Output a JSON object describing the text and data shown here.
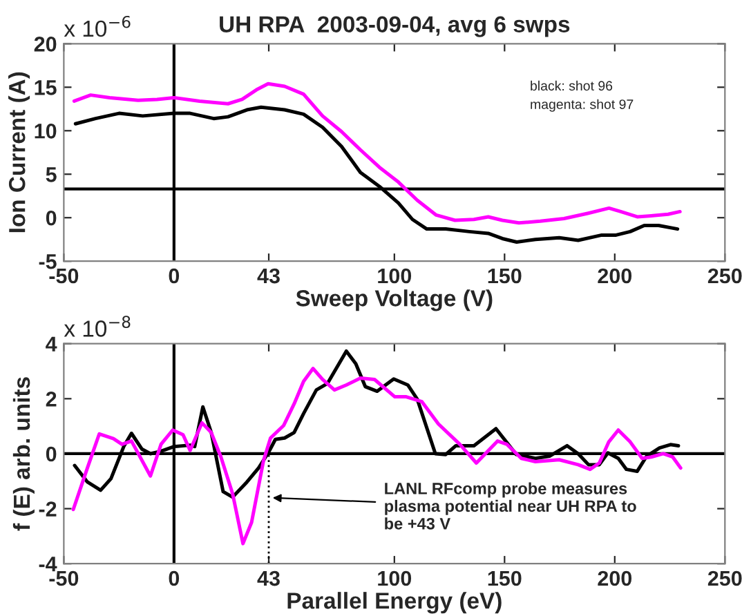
{
  "chart_data": [
    {
      "type": "line",
      "title": "UH RPA  2003-09-04, avg 6 swps",
      "xlabel": "Sweep Voltage (V)",
      "ylabel": "Ion Current (A)",
      "xlim": [
        -50,
        250
      ],
      "xticks": [
        -50,
        0,
        43,
        100,
        150,
        200,
        250
      ],
      "ylim": [
        -5,
        20
      ],
      "yticks": [
        -5,
        0,
        5,
        10,
        15,
        20
      ],
      "grid": false,
      "annotations": [
        "x 10$^{−6}$",
        "black: shot 96",
        "magenta: shot 97"
      ],
      "ref_lines": [
        {
          "axis": "y",
          "value": 3.3,
          "color": "#000000",
          "line_style": "solid"
        },
        {
          "axis": "x",
          "value": 0,
          "color": "#000000",
          "line_style": "solid"
        }
      ],
      "series": [
        {
          "color": "#ff00ff",
          "x": [
            -45.3,
            -37.8,
            -29.2,
            -16.3,
            -7.7,
            0,
            11.6,
            24.5,
            30.9,
            37.4,
            42.7,
            50.2,
            58.8,
            67.4,
            76,
            84.6,
            93.2,
            101.8,
            110.4,
            119,
            127.5,
            136.1,
            142.6,
            149,
            156.5,
            166.2,
            177,
            187.7,
            197.4,
            202.7,
            210.2,
            215.6,
            224.2,
            229.6
          ],
          "values": [
            13.4,
            14.1,
            13.8,
            13.5,
            13.6,
            13.8,
            13.4,
            13.1,
            13.6,
            14.7,
            15.4,
            15.1,
            14.2,
            11.7,
            9.9,
            7.8,
            5.8,
            4.1,
            2.0,
            0.3,
            -0.3,
            -0.2,
            0.1,
            -0.3,
            -0.6,
            -0.4,
            -0.1,
            0.5,
            1.1,
            0.7,
            0.1,
            0.2,
            0.4,
            0.7
          ]
        },
        {
          "color": "#000000",
          "x": [
            -44.7,
            -35.6,
            -24.9,
            -14.2,
            0,
            7.3,
            18,
            24.5,
            33.1,
            39.5,
            50.2,
            58.8,
            67.4,
            76,
            84.6,
            93.2,
            101.8,
            108.2,
            114.7,
            123.3,
            134,
            142.6,
            149,
            155.5,
            164,
            174.8,
            183.4,
            194.1,
            200.6,
            207,
            213.4,
            219.9,
            228.5
          ],
          "values": [
            10.8,
            11.4,
            12.0,
            11.7,
            12.0,
            12.0,
            11.4,
            11.6,
            12.4,
            12.7,
            12.4,
            11.9,
            10.4,
            8.2,
            5.2,
            3.6,
            1.7,
            -0.2,
            -1.3,
            -1.3,
            -1.6,
            -1.8,
            -2.4,
            -2.8,
            -2.5,
            -2.3,
            -2.6,
            -2.0,
            -2.0,
            -1.6,
            -0.9,
            -0.9,
            -1.3
          ]
        }
      ]
    },
    {
      "type": "line",
      "xlabel": "Parallel Energy (eV)",
      "ylabel": "f (E) arb. units",
      "xlim": [
        -50,
        250
      ],
      "xticks": [
        -50,
        0,
        43,
        100,
        150,
        200,
        250
      ],
      "ylim": [
        -4,
        4
      ],
      "yticks": [
        -4,
        -2,
        0,
        2,
        4
      ],
      "grid": false,
      "annotations": [
        "x 10$^{−8}$",
        {
          "text": "LANL RFcomp probe measures\nplasma potential near UH RPA to\nbe +43 V",
          "x": 43,
          "y": -1.6
        }
      ],
      "ref_lines": [
        {
          "axis": "y",
          "value": 0,
          "color": "#000000",
          "line_style": "solid"
        },
        {
          "axis": "x",
          "value": 0,
          "color": "#000000",
          "line_style": "solid"
        },
        {
          "axis": "x",
          "value": 43,
          "color": "#000000",
          "line_style": "dotted"
        }
      ],
      "series": [
        {
          "color": "#000000",
          "x": [
            -45.1,
            -39.3,
            -33.3,
            -28.6,
            -22.8,
            -19.3,
            -14.6,
            -10.7,
            -5.9,
            0,
            7.3,
            9.4,
            13.1,
            16.9,
            22.3,
            26.6,
            33.1,
            38.4,
            42.9,
            46,
            50.2,
            54.5,
            58.8,
            64.6,
            69.6,
            78.2,
            82.5,
            86.8,
            92.2,
            99.7,
            106.1,
            110.4,
            118.6,
            123.3,
            127.9,
            136.1,
            146.1,
            155.3,
            164,
            170.4,
            178.4,
            183.4,
            188.1,
            193,
            196.9,
            201.6,
            205.3,
            210.2,
            214.5,
            220.3,
            225.3,
            228.9
          ],
          "values": [
            -0.43,
            -1.03,
            -1.33,
            -0.91,
            0.26,
            0.74,
            0.17,
            0,
            0.09,
            0.26,
            0.31,
            0.26,
            1.7,
            0.77,
            -1.38,
            -1.58,
            -1.03,
            -0.52,
            0.05,
            0.52,
            0.57,
            0.77,
            1.46,
            2.32,
            2.55,
            3.73,
            3.27,
            2.44,
            2.27,
            2.72,
            2.5,
            1.98,
            0,
            -0.03,
            0.29,
            0.29,
            0.91,
            -0.03,
            -0.17,
            -0.09,
            0.29,
            0,
            -0.4,
            -0.4,
            0.03,
            -0.17,
            -0.57,
            -0.64,
            -0.09,
            0.21,
            0.33,
            0.29
          ]
        },
        {
          "color": "#ff00ff",
          "x": [
            -45.7,
            -39.3,
            -33.9,
            -27.5,
            -23.6,
            -19.3,
            -10.7,
            -5.9,
            -0.6,
            4.1,
            7.3,
            12.7,
            16.9,
            21.3,
            26.6,
            31.3,
            35.2,
            40.6,
            43.8,
            49.8,
            54.5,
            58.8,
            63.1,
            67.4,
            72.8,
            78.2,
            84.6,
            91,
            100.2,
            105.4,
            112.5,
            120,
            129.7,
            137.2,
            146.8,
            151.1,
            157.6,
            164,
            174.8,
            183.4,
            188.8,
            193,
            197.3,
            201.6,
            207,
            212.4,
            216.6,
            222,
            226.3,
            229.9
          ],
          "values": [
            -2.03,
            -0.52,
            0.72,
            0.55,
            0.34,
            0.46,
            -0.81,
            0.34,
            0.86,
            0.69,
            0.12,
            1.12,
            0.77,
            -0.12,
            -1.46,
            -3.27,
            -2.5,
            -0.26,
            0.57,
            1.03,
            1.81,
            2.63,
            3.1,
            2.7,
            2.32,
            2.5,
            2.75,
            2.7,
            2.07,
            2.07,
            1.89,
            1.08,
            0.34,
            -0.34,
            0.46,
            0.34,
            -0.17,
            -0.29,
            -0.22,
            -0.4,
            -0.57,
            -0.34,
            0.43,
            0.86,
            0.43,
            -0.17,
            -0.12,
            0,
            -0.12,
            -0.52
          ]
        }
      ]
    }
  ]
}
